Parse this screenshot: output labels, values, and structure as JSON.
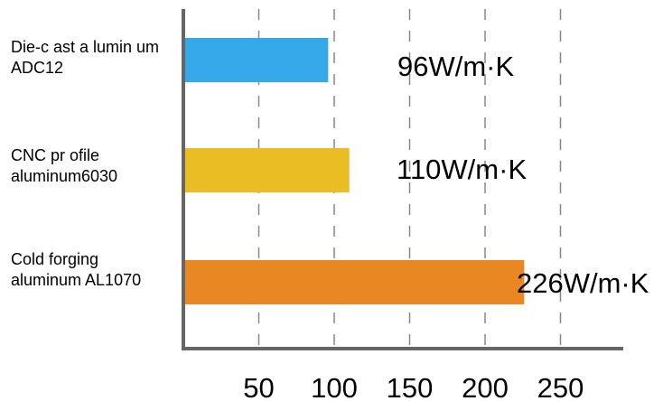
{
  "chart_data": {
    "type": "bar",
    "orientation": "horizontal",
    "categories": [
      [
        "Die-c ast a lumin um",
        "ADC12"
      ],
      [
        "CNC pr ofile",
        "aluminum6030"
      ],
      [
        "Cold forging",
        "aluminum AL1070"
      ]
    ],
    "values": [
      96,
      110,
      226
    ],
    "value_labels": [
      "96W/m·K",
      "110W/m·K",
      "226W/m·K"
    ],
    "colors": [
      "#35a8ea",
      "#ebbd25",
      "#e98823"
    ],
    "x_ticks": [
      50,
      100,
      150,
      200,
      250
    ],
    "xlim": [
      0,
      290
    ],
    "grid": true,
    "grid_style": "dashed vertical"
  }
}
